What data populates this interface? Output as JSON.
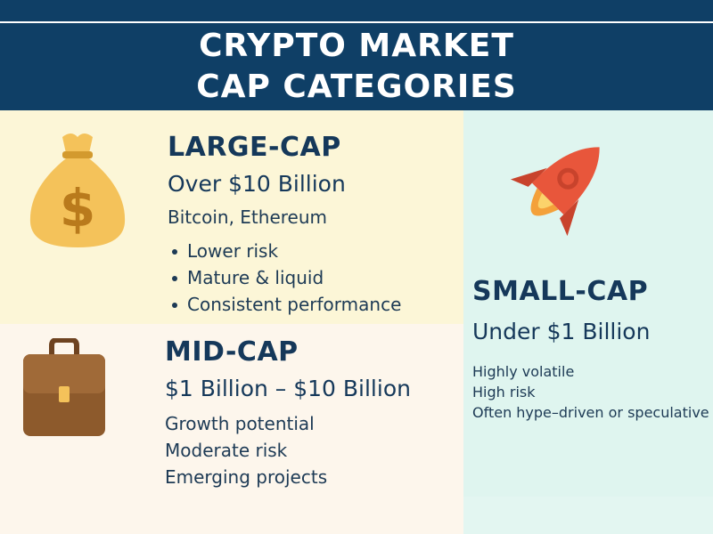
{
  "header": {
    "title_line1": "CRYPTO MARKET",
    "title_line2": "CAP CATEGORIES"
  },
  "large_cap": {
    "heading": "LARGE-CAP",
    "range": "Over $10 Billion",
    "examples": "Bitcoin, Ethereum",
    "bullets": [
      "Lower risk",
      "Mature & liquid",
      "Consistent performance"
    ],
    "icon": "money-bag-icon"
  },
  "mid_cap": {
    "heading": "MID-CAP",
    "range": "$1 Billion – $10 Billion",
    "points": [
      "Growth potential",
      "Moderate risk",
      "Emerging projects"
    ],
    "icon": "briefcase-icon"
  },
  "small_cap": {
    "heading": "SMALL-CAP",
    "range": "Under $1 Billion",
    "points": [
      "Highly volatile",
      "High risk",
      "Often hype–driven or speculative"
    ],
    "icon": "rocket-icon"
  },
  "colors": {
    "header_bg": "#0f3f66",
    "large_bg": "#fcf6d7",
    "mid_bg": "#fdf6ec",
    "small_bg": "#dff5ef",
    "text": "#15385a"
  }
}
